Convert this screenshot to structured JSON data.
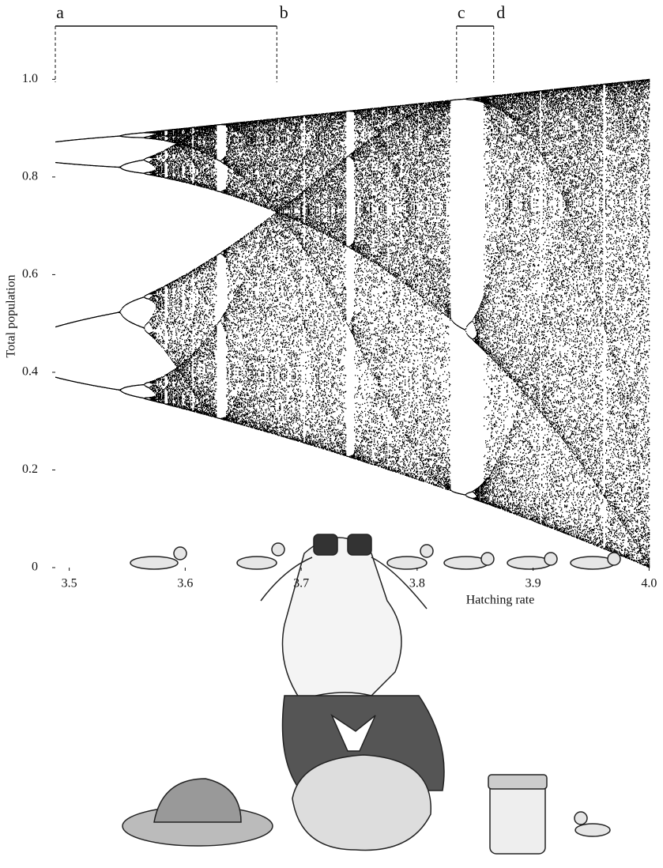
{
  "chart_data": {
    "type": "bifurcation",
    "xlabel": "Hatching rate",
    "ylabel": "Total population",
    "xlim": [
      3.488,
      4.012
    ],
    "ylim": [
      0,
      1.02
    ],
    "xticks": [
      3.5,
      3.6,
      3.7,
      3.8,
      3.9,
      {
        "value": 4,
        "label": "4.0"
      }
    ],
    "yticks": [
      0,
      0.2,
      0.4,
      0.6,
      0.8,
      {
        "value": 1,
        "label": "1.0"
      }
    ],
    "color": "#000000",
    "brackets": [
      [
        {
          "label": "a",
          "x": 3.488
        },
        {
          "label": "b",
          "x": 3.679
        }
      ],
      [
        {
          "label": "c",
          "x": 3.834
        },
        {
          "label": "d",
          "x": 3.866
        }
      ]
    ]
  }
}
